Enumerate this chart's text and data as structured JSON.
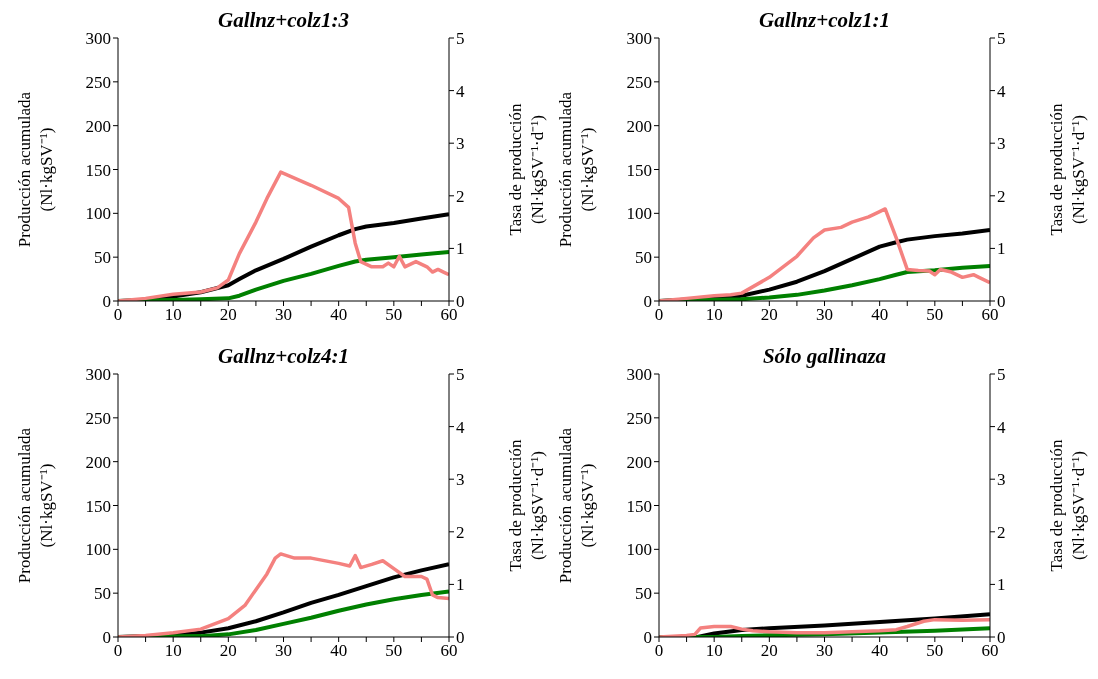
{
  "chart_data": [
    {
      "type": "line",
      "title": "Gallnz+colz1:3",
      "ylabel": "Producción acumulada\n(Nl·kgSV⁻¹)",
      "y2label": "Tasa de producción\n(Nl·kgSV⁻¹·d⁻¹)",
      "xlim": [
        0,
        60
      ],
      "xticks": [
        0,
        {
          "value": 5,
          "label": null
        },
        10,
        {
          "value": 15,
          "label": null
        },
        20,
        {
          "value": 25,
          "label": null
        },
        30,
        {
          "value": 35,
          "label": null
        },
        40,
        {
          "value": 45,
          "label": null
        },
        50,
        {
          "value": 55,
          "label": null
        },
        60
      ],
      "ylim": [
        0,
        300
      ],
      "yticks": [
        0,
        50,
        100,
        150,
        200,
        250,
        300
      ],
      "y2lim": [
        0,
        5
      ],
      "y2ticks": [
        0,
        1,
        2,
        3,
        4,
        5
      ],
      "grid": false,
      "legend": false,
      "marker": "none",
      "line_style": "solid",
      "series": [
        {
          "color": "#000000",
          "x": [
            0,
            5,
            10,
            15,
            20,
            22,
            25,
            30,
            35,
            40,
            43,
            45,
            50,
            55,
            60
          ],
          "values": [
            0,
            1,
            5,
            10,
            18,
            25,
            35,
            48,
            62,
            75,
            82,
            85,
            89,
            94,
            99
          ]
        },
        {
          "color": "#008000",
          "x": [
            0,
            10,
            15,
            20,
            22,
            25,
            30,
            35,
            40,
            43,
            45,
            50,
            55,
            60
          ],
          "values": [
            0,
            1,
            2,
            3,
            6,
            13,
            23,
            31,
            40,
            45,
            47,
            50,
            53,
            56
          ]
        },
        {
          "color": "#f4817f",
          "axis": "y2",
          "x": [
            0,
            5,
            10,
            15,
            18,
            20,
            22,
            25,
            27,
            29.5,
            35,
            40,
            41.8,
            43,
            44,
            46,
            48,
            49,
            50,
            51,
            52,
            54,
            56,
            57,
            58,
            59,
            60
          ],
          "values": [
            0,
            0.05,
            0.13,
            0.17,
            0.25,
            0.4,
            0.9,
            1.5,
            1.95,
            2.45,
            2.2,
            1.95,
            1.78,
            1.1,
            0.75,
            0.65,
            0.65,
            0.72,
            0.65,
            0.85,
            0.65,
            0.75,
            0.65,
            0.55,
            0.6,
            0.55,
            0.5
          ]
        }
      ]
    },
    {
      "type": "line",
      "title": "Gallnz+colz1:1",
      "ylabel": "Producción acumulada\n(Nl·kgSV⁻¹)",
      "y2label": "Tasa de producción\n(Nl·kgSV⁻¹·d⁻¹)",
      "xlim": [
        0,
        60
      ],
      "xticks": [
        0,
        {
          "value": 5,
          "label": null
        },
        10,
        {
          "value": 15,
          "label": null
        },
        20,
        {
          "value": 25,
          "label": null
        },
        30,
        {
          "value": 35,
          "label": null
        },
        40,
        {
          "value": 45,
          "label": null
        },
        50,
        {
          "value": 55,
          "label": null
        },
        60
      ],
      "ylim": [
        0,
        300
      ],
      "yticks": [
        0,
        50,
        100,
        150,
        200,
        250,
        300
      ],
      "y2lim": [
        0,
        5
      ],
      "y2ticks": [
        0,
        1,
        2,
        3,
        4,
        5
      ],
      "grid": false,
      "legend": false,
      "marker": "none",
      "line_style": "solid",
      "series": [
        {
          "color": "#000000",
          "x": [
            0,
            10,
            15,
            20,
            25,
            30,
            35,
            40,
            43,
            45,
            50,
            55,
            60
          ],
          "values": [
            0,
            3,
            6,
            13,
            22,
            34,
            48,
            62,
            67,
            70,
            74,
            77,
            81
          ]
        },
        {
          "color": "#008000",
          "x": [
            0,
            15,
            20,
            25,
            30,
            35,
            40,
            43,
            45,
            50,
            55,
            60
          ],
          "values": [
            0,
            2,
            4,
            7,
            12,
            18,
            25,
            30,
            33,
            35,
            38,
            40
          ]
        },
        {
          "color": "#f4817f",
          "axis": "y2",
          "x": [
            0,
            5,
            10,
            13,
            15,
            20,
            25,
            28,
            30,
            33,
            35,
            38,
            40,
            41,
            43,
            45,
            47,
            49,
            50,
            51,
            53,
            55,
            57,
            58,
            60
          ],
          "values": [
            0,
            0.05,
            0.1,
            0.12,
            0.15,
            0.45,
            0.85,
            1.2,
            1.35,
            1.4,
            1.5,
            1.6,
            1.7,
            1.75,
            1.2,
            0.6,
            0.58,
            0.57,
            0.5,
            0.6,
            0.55,
            0.45,
            0.5,
            0.45,
            0.35
          ]
        }
      ]
    },
    {
      "type": "line",
      "title": "Gallnz+colz4:1",
      "ylabel": "Producción acumulada\n(Nl·kgSV⁻¹)",
      "y2label": "Tasa de producción\n(Nl·kgSV⁻¹·d⁻¹)",
      "xlim": [
        0,
        60
      ],
      "xticks": [
        0,
        {
          "value": 5,
          "label": null
        },
        10,
        {
          "value": 15,
          "label": null
        },
        20,
        {
          "value": 25,
          "label": null
        },
        30,
        {
          "value": 35,
          "label": null
        },
        40,
        {
          "value": 45,
          "label": null
        },
        50,
        {
          "value": 55,
          "label": null
        },
        60
      ],
      "ylim": [
        0,
        300
      ],
      "yticks": [
        0,
        50,
        100,
        150,
        200,
        250,
        300
      ],
      "y2lim": [
        0,
        5
      ],
      "y2ticks": [
        0,
        1,
        2,
        3,
        4,
        5
      ],
      "grid": false,
      "legend": false,
      "marker": "none",
      "line_style": "solid",
      "series": [
        {
          "color": "#000000",
          "x": [
            0,
            10,
            15,
            20,
            25,
            30,
            35,
            40,
            45,
            50,
            55,
            60
          ],
          "values": [
            0,
            2,
            5,
            10,
            18,
            28,
            39,
            48,
            58,
            68,
            76,
            83
          ]
        },
        {
          "color": "#008000",
          "x": [
            0,
            15,
            20,
            25,
            30,
            35,
            40,
            45,
            50,
            55,
            60
          ],
          "values": [
            0,
            1,
            3,
            8,
            15,
            22,
            30,
            37,
            43,
            48,
            52
          ]
        },
        {
          "color": "#f4817f",
          "axis": "y2",
          "x": [
            0,
            5,
            10,
            15,
            20,
            23,
            25,
            27,
            28.5,
            29.5,
            32,
            35,
            40,
            42,
            43,
            44,
            46,
            48,
            50,
            52,
            55,
            56,
            57,
            58,
            60
          ],
          "values": [
            0,
            0.03,
            0.08,
            0.15,
            0.35,
            0.6,
            0.9,
            1.2,
            1.5,
            1.58,
            1.5,
            1.5,
            1.4,
            1.35,
            1.55,
            1.32,
            1.38,
            1.45,
            1.3,
            1.15,
            1.15,
            1.1,
            0.8,
            0.75,
            0.73
          ]
        }
      ]
    },
    {
      "type": "line",
      "title": "Sólo gallinaza",
      "ylabel": "Producción acumulada\n(Nl·kgSV⁻¹)",
      "y2label": "Tasa de producción\n(Nl·kgSV⁻¹·d⁻¹)",
      "xlim": [
        0,
        60
      ],
      "xticks": [
        0,
        {
          "value": 5,
          "label": null
        },
        10,
        {
          "value": 15,
          "label": null
        },
        20,
        {
          "value": 25,
          "label": null
        },
        30,
        {
          "value": 35,
          "label": null
        },
        40,
        {
          "value": 45,
          "label": null
        },
        50,
        {
          "value": 55,
          "label": null
        },
        60
      ],
      "ylim": [
        0,
        300
      ],
      "yticks": [
        0,
        50,
        100,
        150,
        200,
        250,
        300
      ],
      "y2lim": [
        0,
        5
      ],
      "y2ticks": [
        0,
        1,
        2,
        3,
        4,
        5
      ],
      "grid": false,
      "legend": false,
      "marker": "none",
      "line_style": "solid",
      "series": [
        {
          "color": "#000000",
          "x": [
            0,
            7,
            10,
            15,
            20,
            30,
            40,
            50,
            60
          ],
          "values": [
            0,
            0,
            4,
            8,
            10,
            13,
            17,
            21,
            26
          ]
        },
        {
          "color": "#008000",
          "x": [
            0,
            10,
            15,
            20,
            30,
            40,
            50,
            60
          ],
          "values": [
            0,
            0,
            1,
            2,
            3,
            5,
            7,
            10
          ]
        },
        {
          "color": "#f4817f",
          "axis": "y2",
          "x": [
            0,
            5,
            6.5,
            7.5,
            10,
            13,
            15,
            17,
            20,
            25,
            30,
            35,
            40,
            43,
            45,
            48,
            50,
            55,
            60
          ],
          "values": [
            0,
            0.03,
            0.05,
            0.17,
            0.2,
            0.2,
            0.15,
            0.12,
            0.1,
            0.08,
            0.08,
            0.1,
            0.12,
            0.14,
            0.2,
            0.3,
            0.33,
            0.32,
            0.33
          ]
        }
      ]
    }
  ]
}
